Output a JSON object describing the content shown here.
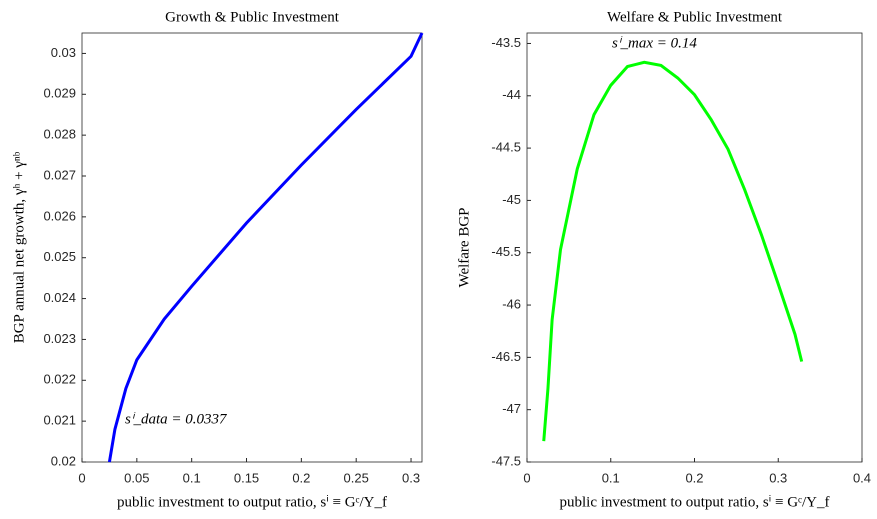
{
  "chart_data": [
    {
      "type": "line",
      "title": "Growth & Public Investment",
      "xlabel": "public investment to output ratio, sⁱ ≡ Gᶜ/Y_f",
      "ylabel": "BGP annual net growth, γʰ + γⁿᵇ",
      "annotation": "sⁱ_data = 0.0337",
      "xlim": [
        0,
        0.31
      ],
      "xticks": [
        0,
        0.05,
        0.1,
        0.15,
        0.2,
        0.25,
        0.3
      ],
      "ylim": [
        0.02,
        0.0305
      ],
      "yticks": [
        0.02,
        0.021,
        0.022,
        0.023,
        0.024,
        0.025,
        0.026,
        0.027,
        0.028,
        0.029,
        0.03
      ],
      "series": [
        {
          "color": "#0000ff",
          "x": [
            0.025,
            0.03,
            0.04,
            0.05,
            0.075,
            0.1,
            0.15,
            0.2,
            0.25,
            0.3,
            0.31
          ],
          "values": [
            0.02,
            0.0208,
            0.0218,
            0.0225,
            0.0235,
            0.0243,
            0.02585,
            0.02727,
            0.02863,
            0.02993,
            0.0305
          ]
        }
      ]
    },
    {
      "type": "line",
      "title": "Welfare & Public Investment",
      "xlabel": "public investment to output ratio, sⁱ ≡ Gᶜ/Y_f",
      "ylabel": "Welfare BGP",
      "annotation": "sⁱ_max = 0.14",
      "xlim": [
        0,
        0.4
      ],
      "xticks": [
        0,
        0.1,
        0.2,
        0.3,
        0.4
      ],
      "ylim": [
        -47.5,
        -43.4
      ],
      "yticks": [
        -47.5,
        -47,
        -46.5,
        -46,
        -45.5,
        -45,
        -44.5,
        -44,
        -43.5
      ],
      "series": [
        {
          "color": "#00ff00",
          "x": [
            0.02,
            0.025,
            0.03,
            0.04,
            0.06,
            0.08,
            0.1,
            0.12,
            0.14,
            0.16,
            0.18,
            0.2,
            0.22,
            0.24,
            0.26,
            0.28,
            0.3,
            0.32,
            0.328
          ],
          "values": [
            -47.3,
            -46.8,
            -46.14,
            -45.47,
            -44.7,
            -44.18,
            -43.9,
            -43.72,
            -43.68,
            -43.71,
            -43.83,
            -43.99,
            -44.23,
            -44.51,
            -44.9,
            -45.33,
            -45.8,
            -46.28,
            -46.54
          ]
        }
      ]
    }
  ]
}
